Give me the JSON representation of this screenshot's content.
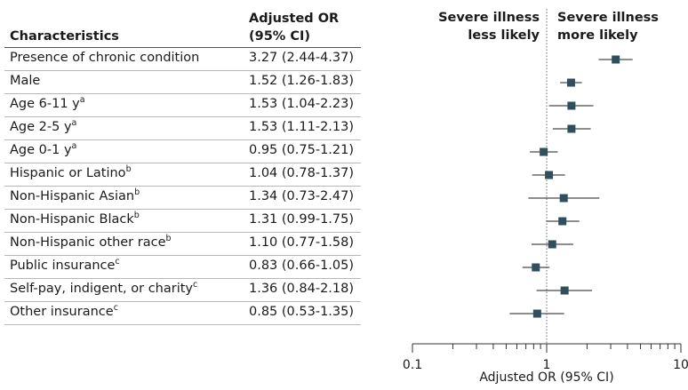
{
  "header": {
    "characteristics": "Characteristics",
    "or_line1": "Adjusted OR",
    "or_line2": "(95% CI)"
  },
  "direction": {
    "left_line1": "Severe illness",
    "left_line2": "less likely",
    "right_line1": "Severe illness",
    "right_line2": "more likely"
  },
  "rows": [
    {
      "label": "Presence of chronic condition",
      "sup": "",
      "or_text": "3.27 (2.44-4.37)"
    },
    {
      "label": "Male",
      "sup": "",
      "or_text": "1.52 (1.26-1.83)"
    },
    {
      "label": "Age 6-11 y",
      "sup": "a",
      "or_text": "1.53 (1.04-2.23)"
    },
    {
      "label": "Age 2-5 y",
      "sup": "a",
      "or_text": "1.53 (1.11-2.13)"
    },
    {
      "label": "Age 0-1 y",
      "sup": "a",
      "or_text": "0.95 (0.75-1.21)"
    },
    {
      "label": "Hispanic or Latino",
      "sup": "b",
      "or_text": "1.04 (0.78-1.37)"
    },
    {
      "label": "Non-Hispanic Asian",
      "sup": "b",
      "or_text": "1.34 (0.73-2.47)"
    },
    {
      "label": "Non-Hispanic Black",
      "sup": "b",
      "or_text": "1.31 (0.99-1.75)"
    },
    {
      "label": "Non-Hispanic other race",
      "sup": "b",
      "or_text": "1.10 (0.77-1.58)"
    },
    {
      "label": "Public insurance",
      "sup": "c",
      "or_text": "0.83 (0.66-1.05)"
    },
    {
      "label": "Self-pay, indigent, or charity",
      "sup": "c",
      "or_text": "1.36 (0.84-2.18)"
    },
    {
      "label": "Other insurance",
      "sup": "c",
      "or_text": "0.85 (0.53-1.35)"
    }
  ],
  "chart_data": {
    "type": "scatter",
    "subtype": "forest",
    "xlabel": "Adjusted OR (95% CI)",
    "xscale": "log",
    "xlim": [
      0.1,
      10
    ],
    "xticks": [
      0.1,
      1,
      10
    ],
    "xtick_labels": [
      "0.1",
      "1",
      "10"
    ],
    "reference_line": 1,
    "categories": [
      "Presence of chronic condition",
      "Male",
      "Age 6-11 y",
      "Age 2-5 y",
      "Age 0-1 y",
      "Hispanic or Latino",
      "Non-Hispanic Asian",
      "Non-Hispanic Black",
      "Non-Hispanic other race",
      "Public insurance",
      "Self-pay, indigent, or charity",
      "Other insurance"
    ],
    "or": [
      3.27,
      1.52,
      1.53,
      1.53,
      0.95,
      1.04,
      1.34,
      1.31,
      1.1,
      0.83,
      1.36,
      0.85
    ],
    "ci_low": [
      2.44,
      1.26,
      1.04,
      1.11,
      0.75,
      0.78,
      0.73,
      0.99,
      0.77,
      0.66,
      0.84,
      0.53
    ],
    "ci_high": [
      4.37,
      1.83,
      2.23,
      2.13,
      1.21,
      1.37,
      2.47,
      1.75,
      1.58,
      1.05,
      2.18,
      1.35
    ],
    "marker_color": "#2f4f5c"
  }
}
